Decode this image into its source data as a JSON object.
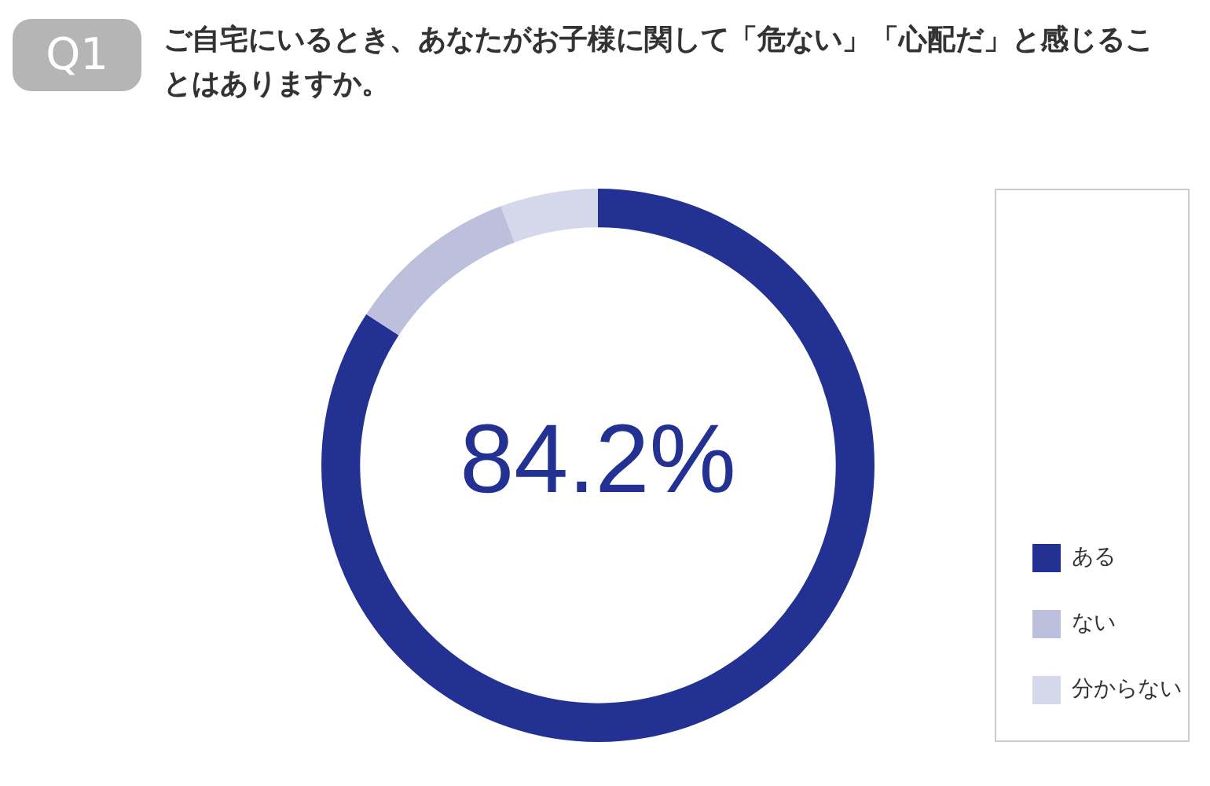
{
  "chart_data": {
    "type": "donut",
    "title": "ご自宅にいるとき、あなたがお子様に関して「危ない」「心配だ」と感じることはありますか。",
    "annotations": [
      "Q1"
    ],
    "categories": [
      "ある",
      "ない",
      "分からない"
    ],
    "values": [
      84.2,
      10.1,
      5.7
    ],
    "colors": [
      "#233192",
      "#bcc0dd",
      "#d5d8ea"
    ],
    "value_labels": [
      "84.2%",
      null,
      null
    ],
    "legend": "bottom right"
  }
}
